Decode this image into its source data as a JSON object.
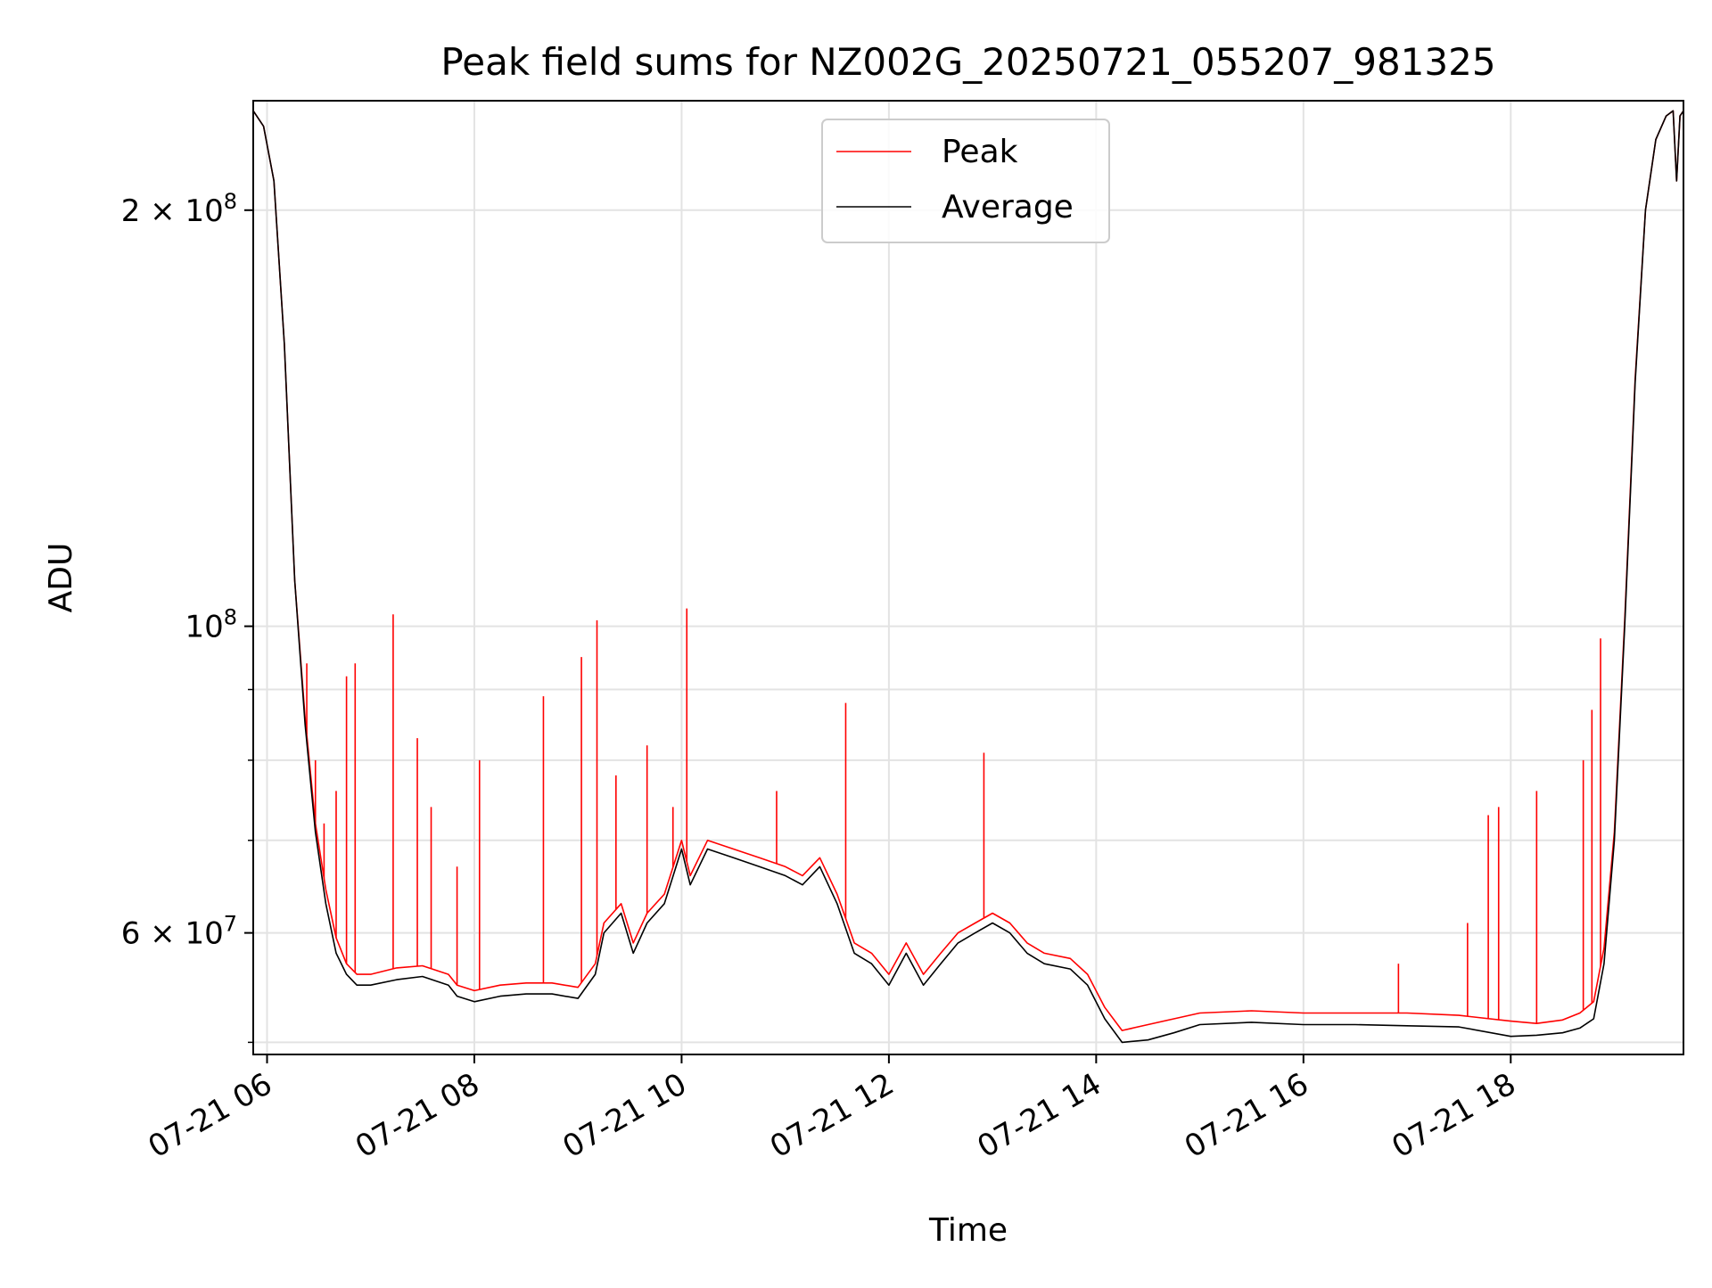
{
  "chart_data": {
    "type": "line",
    "title": "Peak field sums for NZ002G_20250721_055207_981325",
    "xlabel": "Time",
    "ylabel": "ADU",
    "y_scale": "log",
    "ylim": [
      49000000,
      240000000
    ],
    "xlim": [
      "07-21 05:52",
      "07-21 19:40"
    ],
    "x_ticks": [
      {
        "at": "07-21 06:00",
        "label": "07-21 06"
      },
      {
        "at": "07-21 08:00",
        "label": "07-21 08"
      },
      {
        "at": "07-21 10:00",
        "label": "07-21 10"
      },
      {
        "at": "07-21 12:00",
        "label": "07-21 12"
      },
      {
        "at": "07-21 14:00",
        "label": "07-21 14"
      },
      {
        "at": "07-21 16:00",
        "label": "07-21 16"
      },
      {
        "at": "07-21 18:00",
        "label": "07-21 18"
      }
    ],
    "y_ticks": [
      {
        "value": 60000000,
        "label_base": "6 × 10",
        "label_exp": "7"
      },
      {
        "value": 100000000,
        "label_base": "10",
        "label_exp": "8"
      },
      {
        "value": 200000000,
        "label_base": "2 × 10",
        "label_exp": "8"
      }
    ],
    "y_minor_ticks": [
      50000000,
      70000000,
      80000000,
      90000000
    ],
    "grid": true,
    "legend_position": "top-center",
    "series": [
      {
        "name": "Average",
        "color": "#000000",
        "x": [
          "07-21 05:52",
          "07-21 05:58",
          "07-21 06:04",
          "07-21 06:10",
          "07-21 06:16",
          "07-21 06:22",
          "07-21 06:28",
          "07-21 06:34",
          "07-21 06:40",
          "07-21 06:46",
          "07-21 06:52",
          "07-21 07:00",
          "07-21 07:15",
          "07-21 07:30",
          "07-21 07:45",
          "07-21 07:50",
          "07-21 08:00",
          "07-21 08:15",
          "07-21 08:30",
          "07-21 08:45",
          "07-21 09:00",
          "07-21 09:10",
          "07-21 09:15",
          "07-21 09:25",
          "07-21 09:32",
          "07-21 09:40",
          "07-21 09:50",
          "07-21 10:00",
          "07-21 10:05",
          "07-21 10:15",
          "07-21 10:30",
          "07-21 10:45",
          "07-21 11:00",
          "07-21 11:10",
          "07-21 11:20",
          "07-21 11:30",
          "07-21 11:40",
          "07-21 11:50",
          "07-21 12:00",
          "07-21 12:10",
          "07-21 12:20",
          "07-21 12:30",
          "07-21 12:40",
          "07-21 12:50",
          "07-21 13:00",
          "07-21 13:10",
          "07-21 13:20",
          "07-21 13:30",
          "07-21 13:45",
          "07-21 13:55",
          "07-21 14:05",
          "07-21 14:15",
          "07-21 14:30",
          "07-21 14:45",
          "07-21 15:00",
          "07-21 15:30",
          "07-21 16:00",
          "07-21 16:30",
          "07-21 17:00",
          "07-21 17:30",
          "07-21 18:00",
          "07-21 18:15",
          "07-21 18:30",
          "07-21 18:40",
          "07-21 18:48",
          "07-21 18:54",
          "07-21 19:00",
          "07-21 19:06",
          "07-21 19:12",
          "07-21 19:18",
          "07-21 19:24",
          "07-21 19:30",
          "07-21 19:34",
          "07-21 19:36",
          "07-21 19:38",
          "07-21 19:40"
        ],
        "values": [
          236000000,
          230000000,
          210000000,
          160000000,
          108000000,
          85000000,
          71000000,
          63000000,
          58000000,
          56000000,
          55000000,
          55000000,
          55500000,
          55800000,
          55000000,
          54000000,
          53500000,
          54000000,
          54200000,
          54200000,
          53800000,
          56000000,
          60000000,
          62000000,
          58000000,
          61000000,
          63000000,
          69000000,
          65000000,
          69000000,
          68000000,
          67000000,
          66000000,
          65000000,
          67000000,
          63000000,
          58000000,
          57000000,
          55000000,
          58000000,
          55000000,
          57000000,
          59000000,
          60000000,
          61000000,
          60000000,
          58000000,
          57000000,
          56500000,
          55000000,
          52000000,
          50000000,
          50200000,
          50800000,
          51500000,
          51700000,
          51500000,
          51500000,
          51400000,
          51300000,
          50500000,
          50600000,
          50800000,
          51200000,
          52000000,
          57000000,
          70000000,
          100000000,
          150000000,
          200000000,
          225000000,
          234000000,
          236000000,
          210000000,
          234000000,
          236000000
        ]
      },
      {
        "name": "Peak",
        "color": "#ff0000",
        "x": [
          "07-21 05:52",
          "07-21 05:58",
          "07-21 06:04",
          "07-21 06:10",
          "07-21 06:16",
          "07-21 06:22",
          "07-21 06:28",
          "07-21 06:34",
          "07-21 06:40",
          "07-21 06:46",
          "07-21 06:52",
          "07-21 07:00",
          "07-21 07:15",
          "07-21 07:30",
          "07-21 07:45",
          "07-21 07:50",
          "07-21 08:00",
          "07-21 08:15",
          "07-21 08:30",
          "07-21 08:45",
          "07-21 09:00",
          "07-21 09:10",
          "07-21 09:15",
          "07-21 09:25",
          "07-21 09:32",
          "07-21 09:40",
          "07-21 09:50",
          "07-21 10:00",
          "07-21 10:05",
          "07-21 10:15",
          "07-21 10:30",
          "07-21 10:45",
          "07-21 11:00",
          "07-21 11:10",
          "07-21 11:20",
          "07-21 11:30",
          "07-21 11:40",
          "07-21 11:50",
          "07-21 12:00",
          "07-21 12:10",
          "07-21 12:20",
          "07-21 12:30",
          "07-21 12:40",
          "07-21 12:50",
          "07-21 13:00",
          "07-21 13:10",
          "07-21 13:20",
          "07-21 13:30",
          "07-21 13:45",
          "07-21 13:55",
          "07-21 14:05",
          "07-21 14:15",
          "07-21 14:30",
          "07-21 14:45",
          "07-21 15:00",
          "07-21 15:30",
          "07-21 16:00",
          "07-21 16:30",
          "07-21 17:00",
          "07-21 17:30",
          "07-21 18:00",
          "07-21 18:15",
          "07-21 18:30",
          "07-21 18:40",
          "07-21 18:48",
          "07-21 18:54",
          "07-21 19:00",
          "07-21 19:06",
          "07-21 19:12",
          "07-21 19:18",
          "07-21 19:24",
          "07-21 19:30",
          "07-21 19:34",
          "07-21 19:36",
          "07-21 19:38",
          "07-21 19:40"
        ],
        "values": [
          236000000,
          230000000,
          210000000,
          160000000,
          108000000,
          86000000,
          72000000,
          64500000,
          59500000,
          57000000,
          56000000,
          56000000,
          56600000,
          56800000,
          56000000,
          55000000,
          54500000,
          55000000,
          55200000,
          55200000,
          54800000,
          57000000,
          61000000,
          63000000,
          59000000,
          62000000,
          64000000,
          70000000,
          66000000,
          70000000,
          69000000,
          68000000,
          67000000,
          66000000,
          68000000,
          64000000,
          59000000,
          58000000,
          56000000,
          59000000,
          56000000,
          58000000,
          60000000,
          61000000,
          62000000,
          61000000,
          59000000,
          58000000,
          57500000,
          56000000,
          53000000,
          51000000,
          51500000,
          52000000,
          52500000,
          52700000,
          52500000,
          52500000,
          52500000,
          52300000,
          51800000,
          51600000,
          51900000,
          52500000,
          53500000,
          58500000,
          71000000,
          101000000,
          151000000,
          200000000,
          225000000,
          234000000,
          236000000,
          210000000,
          234000000,
          236000000
        ],
        "spikes": [
          {
            "x": "07-21 06:23",
            "value": 94000000
          },
          {
            "x": "07-21 06:28",
            "value": 80000000
          },
          {
            "x": "07-21 06:33",
            "value": 72000000
          },
          {
            "x": "07-21 06:40",
            "value": 76000000
          },
          {
            "x": "07-21 06:46",
            "value": 92000000
          },
          {
            "x": "07-21 06:51",
            "value": 94000000
          },
          {
            "x": "07-21 07:13",
            "value": 102000000
          },
          {
            "x": "07-21 07:27",
            "value": 83000000
          },
          {
            "x": "07-21 07:35",
            "value": 74000000
          },
          {
            "x": "07-21 07:50",
            "value": 67000000
          },
          {
            "x": "07-21 08:03",
            "value": 80000000
          },
          {
            "x": "07-21 08:40",
            "value": 89000000
          },
          {
            "x": "07-21 09:02",
            "value": 95000000
          },
          {
            "x": "07-21 09:11",
            "value": 101000000
          },
          {
            "x": "07-21 09:22",
            "value": 78000000
          },
          {
            "x": "07-21 09:40",
            "value": 82000000
          },
          {
            "x": "07-21 09:55",
            "value": 74000000
          },
          {
            "x": "07-21 10:03",
            "value": 103000000
          },
          {
            "x": "07-21 10:55",
            "value": 76000000
          },
          {
            "x": "07-21 11:35",
            "value": 88000000
          },
          {
            "x": "07-21 12:55",
            "value": 81000000
          },
          {
            "x": "07-21 16:55",
            "value": 57000000
          },
          {
            "x": "07-21 17:35",
            "value": 61000000
          },
          {
            "x": "07-21 17:47",
            "value": 73000000
          },
          {
            "x": "07-21 17:53",
            "value": 74000000
          },
          {
            "x": "07-21 18:15",
            "value": 76000000
          },
          {
            "x": "07-21 18:42",
            "value": 80000000
          },
          {
            "x": "07-21 18:47",
            "value": 87000000
          },
          {
            "x": "07-21 18:52",
            "value": 98000000
          }
        ]
      }
    ]
  }
}
